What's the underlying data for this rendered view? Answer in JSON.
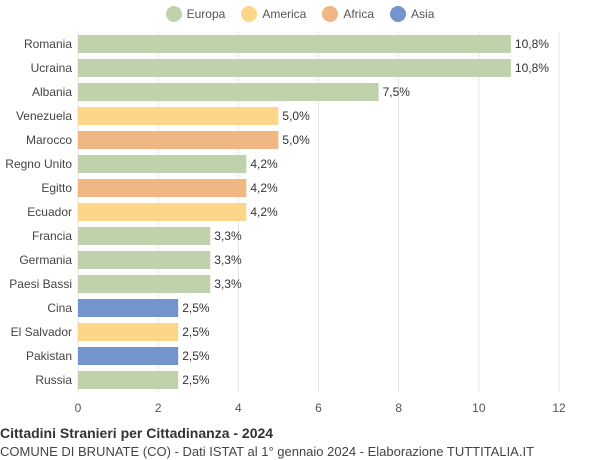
{
  "chart_data": {
    "type": "bar",
    "orientation": "horizontal",
    "title": "Cittadini Stranieri per Cittadinanza - 2024",
    "subtitle": "COMUNE DI BRUNATE (CO) - Dati ISTAT al 1° gennaio 2024 - Elaborazione TUTTITALIA.IT",
    "legend_placement": "top-center",
    "legend": [
      {
        "name": "Europa",
        "color": "#c0d2ab"
      },
      {
        "name": "America",
        "color": "#fdd68a"
      },
      {
        "name": "Africa",
        "color": "#f0b785"
      },
      {
        "name": "Asia",
        "color": "#7494cc"
      }
    ],
    "categories": [
      "Romania",
      "Ucraina",
      "Albania",
      "Venezuela",
      "Marocco",
      "Regno Unito",
      "Egitto",
      "Ecuador",
      "Francia",
      "Germania",
      "Paesi Bassi",
      "Cina",
      "El Salvador",
      "Pakistan",
      "Russia"
    ],
    "values": [
      10.8,
      10.8,
      7.5,
      5.0,
      5.0,
      4.2,
      4.2,
      4.2,
      3.3,
      3.3,
      3.3,
      2.5,
      2.5,
      2.5,
      2.5
    ],
    "value_labels": [
      "10,8%",
      "10,8%",
      "7,5%",
      "5,0%",
      "5,0%",
      "4,2%",
      "4,2%",
      "4,2%",
      "3,3%",
      "3,3%",
      "3,3%",
      "2,5%",
      "2,5%",
      "2,5%",
      "2,5%"
    ],
    "groups": [
      "Europa",
      "Europa",
      "Europa",
      "America",
      "Africa",
      "Europa",
      "Africa",
      "America",
      "Europa",
      "Europa",
      "Europa",
      "Asia",
      "America",
      "Asia",
      "Europa"
    ],
    "xlim": [
      0,
      12
    ],
    "xticks": [
      0,
      2,
      4,
      6,
      8,
      10,
      12
    ],
    "grid": true
  }
}
